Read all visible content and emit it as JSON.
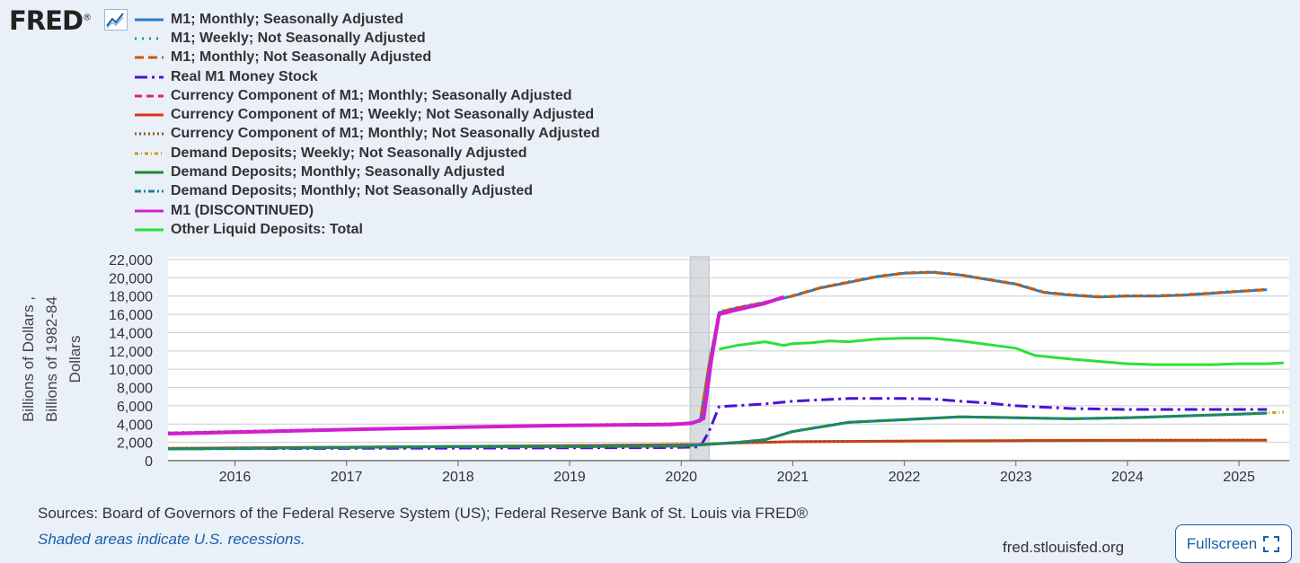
{
  "header": {
    "logo_text": "FRED",
    "logo_mark": "®",
    "logo_icon": "line-chart-icon"
  },
  "colors": {
    "background": "#e9f0f8",
    "recession": "#d9dde2",
    "grid": "#c8ccd2",
    "link": "#1a5fa8"
  },
  "chart_data": {
    "type": "line",
    "ylabel": "Billions of Dollars , Billions of 1982-84 Dollars",
    "ylabel_lines": [
      "Billions of Dollars ,",
      "Billions of 1982-84",
      "Dollars"
    ],
    "ylim": [
      0,
      22000
    ],
    "yticks": [
      "22,000",
      "20,000",
      "18,000",
      "16,000",
      "14,000",
      "12,000",
      "10,000",
      "8,000",
      "6,000",
      "4,000",
      "2,000",
      "0"
    ],
    "xlim": [
      2015.4,
      2025.45
    ],
    "xticks": [
      "2016",
      "2017",
      "2018",
      "2019",
      "2020",
      "2021",
      "2022",
      "2023",
      "2024",
      "2025"
    ],
    "recession": [
      2020.08,
      2020.25
    ],
    "grid": true,
    "series": [
      {
        "name": "M1; Monthly; Seasonally Adjusted",
        "color": "#2b7ad1",
        "dash": "",
        "width": 3,
        "x": [
          2015.4,
          2016,
          2017,
          2018,
          2019,
          2020.0,
          2020.17,
          2020.25,
          2020.34,
          2020.5,
          2020.75,
          2021.0,
          2021.25,
          2021.5,
          2021.75,
          2022.0,
          2022.25,
          2022.5,
          2022.75,
          2023.0,
          2023.25,
          2023.5,
          2023.75,
          2024.0,
          2024.25,
          2024.5,
          2024.75,
          2025.0,
          2025.25
        ],
        "y": [
          3000,
          3150,
          3400,
          3650,
          3850,
          4000,
          4300,
          10500,
          16200,
          16700,
          17300,
          18000,
          18900,
          19500,
          20100,
          20500,
          20600,
          20300,
          19800,
          19300,
          18400,
          18100,
          17900,
          18000,
          18000,
          18100,
          18300,
          18500,
          18700
        ]
      },
      {
        "name": "M1; Weekly; Not Seasonally Adjusted",
        "color": "#12938b",
        "dash": "2 6",
        "width": 3,
        "x": [
          2015.4,
          2016,
          2017,
          2018,
          2019,
          2020.0,
          2020.17,
          2020.25,
          2020.34,
          2020.5,
          2020.75,
          2021.0,
          2021.25,
          2021.5,
          2021.75,
          2022.0,
          2022.25,
          2022.5,
          2022.75,
          2023.0,
          2023.25,
          2023.5,
          2023.75,
          2024.0,
          2024.25,
          2024.5,
          2024.75,
          2025.0,
          2025.25
        ],
        "y": [
          3050,
          3200,
          3450,
          3700,
          3900,
          4050,
          4350,
          10600,
          16300,
          16750,
          17350,
          18050,
          18950,
          19550,
          20150,
          20550,
          20650,
          20350,
          19850,
          19350,
          18450,
          18150,
          17950,
          18050,
          18050,
          18150,
          18350,
          18550,
          18750
        ]
      },
      {
        "name": "M1; Monthly; Not Seasonally Adjusted",
        "color": "#c05c12",
        "dash": "10 5",
        "width": 3,
        "x": [
          2015.4,
          2016,
          2017,
          2018,
          2019,
          2020.0,
          2020.17,
          2020.25,
          2020.34,
          2020.5,
          2020.75,
          2021.0,
          2021.25,
          2021.5,
          2021.75,
          2022.0,
          2022.25,
          2022.5,
          2022.75,
          2023.0,
          2023.25,
          2023.5,
          2023.75,
          2024.0,
          2024.25,
          2024.5,
          2024.75,
          2025.0,
          2025.25
        ],
        "y": [
          3020,
          3170,
          3420,
          3670,
          3870,
          4020,
          4320,
          10550,
          16250,
          16720,
          17320,
          18020,
          18920,
          19520,
          20120,
          20520,
          20620,
          20320,
          19820,
          19320,
          18420,
          18120,
          17920,
          18020,
          18020,
          18120,
          18320,
          18520,
          18720
        ]
      },
      {
        "name": "Real M1 Money Stock",
        "color": "#4c12d6",
        "dash": "14 5 3 5",
        "width": 3,
        "x": [
          2015.4,
          2019.9,
          2020.17,
          2020.25,
          2020.34,
          2020.75,
          2021.0,
          2021.5,
          2022.0,
          2022.25,
          2022.5,
          2022.75,
          2023.0,
          2023.5,
          2024.0,
          2024.5,
          2025.0,
          2025.25
        ],
        "y": [
          1300,
          1420,
          1500,
          3200,
          5900,
          6200,
          6500,
          6800,
          6800,
          6750,
          6500,
          6300,
          6000,
          5700,
          5600,
          5600,
          5600,
          5600
        ]
      },
      {
        "name": "Currency Component of M1; Monthly; Seasonally Adjusted",
        "color": "#e0207a",
        "dash": "8 5",
        "width": 2,
        "x": [
          2015.4,
          2017,
          2019,
          2020.17,
          2020.5,
          2021.0,
          2022.0,
          2023.0,
          2024.0,
          2025.25
        ],
        "y": [
          1350,
          1480,
          1650,
          1780,
          1950,
          2080,
          2150,
          2200,
          2230,
          2250
        ]
      },
      {
        "name": "Currency Component of M1; Weekly; Not Seasonally Adjusted",
        "color": "#e03518",
        "dash": "",
        "width": 3,
        "x": [
          2015.4,
          2017,
          2019,
          2020.17,
          2020.5,
          2021.0,
          2022.0,
          2023.0,
          2024.0,
          2025.25
        ],
        "y": [
          1340,
          1470,
          1640,
          1770,
          1940,
          2070,
          2140,
          2190,
          2220,
          2240
        ]
      },
      {
        "name": "Currency Component of M1; Monthly; Not Seasonally Adjusted",
        "color": "#8a5a10",
        "dash": "2 3",
        "width": 3,
        "x": [
          2015.4,
          2017,
          2019,
          2020.17,
          2020.5,
          2021.0,
          2022.0,
          2023.0,
          2024.0,
          2025.25
        ],
        "y": [
          1345,
          1475,
          1645,
          1775,
          1945,
          2075,
          2145,
          2195,
          2225,
          2245
        ]
      },
      {
        "name": "Demand Deposits; Weekly; Not Seasonally Adjusted",
        "color": "#c99a12",
        "dash": "4 3 1 3",
        "width": 3,
        "x": [
          2015.4,
          2016,
          2017,
          2018,
          2019,
          2020.0,
          2020.25,
          2020.5,
          2020.75,
          2021.0,
          2021.25,
          2021.5,
          2022.0,
          2022.5,
          2023.0,
          2023.5,
          2024.0,
          2024.5,
          2025.0,
          2025.4
        ],
        "y": [
          1300,
          1350,
          1450,
          1550,
          1550,
          1600,
          1800,
          2000,
          2300,
          3200,
          3700,
          4200,
          4500,
          4800,
          4700,
          4600,
          4700,
          4900,
          5100,
          5300
        ]
      },
      {
        "name": "Demand Deposits; Monthly; Seasonally Adjusted",
        "color": "#1f8a2a",
        "dash": "",
        "width": 3,
        "x": [
          2015.4,
          2016,
          2017,
          2018,
          2019,
          2020.0,
          2020.25,
          2020.5,
          2020.75,
          2021.0,
          2021.25,
          2021.5,
          2022.0,
          2022.5,
          2023.0,
          2023.5,
          2024.0,
          2024.5,
          2025.0,
          2025.25
        ],
        "y": [
          1280,
          1330,
          1430,
          1530,
          1530,
          1580,
          1780,
          1980,
          2280,
          3180,
          3680,
          4180,
          4480,
          4780,
          4680,
          4580,
          4680,
          4880,
          5080,
          5200
        ]
      },
      {
        "name": "Demand Deposits; Monthly; Not Seasonally Adjusted",
        "color": "#18868f",
        "dash": "7 3 2 3",
        "width": 3,
        "x": [
          2015.4,
          2016,
          2017,
          2018,
          2019,
          2020.0,
          2020.25,
          2020.5,
          2020.75,
          2021.0,
          2021.25,
          2021.5,
          2022.0,
          2022.5,
          2023.0,
          2023.5,
          2024.0,
          2024.5,
          2025.0,
          2025.25
        ],
        "y": [
          1290,
          1340,
          1440,
          1540,
          1540,
          1590,
          1790,
          1990,
          2290,
          3190,
          3690,
          4190,
          4490,
          4790,
          4690,
          4590,
          4690,
          4890,
          5090,
          5210
        ]
      },
      {
        "name": "M1 (DISCONTINUED)",
        "color": "#d21ed2",
        "dash": "",
        "width": 4,
        "x": [
          2015.4,
          2016,
          2017,
          2018,
          2019,
          2019.9,
          2020.1,
          2020.2,
          2020.27,
          2020.34,
          2020.5,
          2020.75,
          2020.92
        ],
        "y": [
          2950,
          3100,
          3400,
          3650,
          3850,
          3950,
          4100,
          4600,
          11000,
          16000,
          16500,
          17200,
          17900
        ]
      },
      {
        "name": "Other Liquid Deposits: Total",
        "color": "#2be03a",
        "dash": "",
        "width": 3,
        "x": [
          2020.34,
          2020.5,
          2020.75,
          2020.92,
          2021.0,
          2021.17,
          2021.33,
          2021.5,
          2021.75,
          2022.0,
          2022.25,
          2022.5,
          2022.75,
          2023.0,
          2023.17,
          2023.5,
          2024.0,
          2024.25,
          2024.5,
          2024.75,
          2025.0,
          2025.25,
          2025.4
        ],
        "y": [
          12200,
          12600,
          13000,
          12600,
          12800,
          12900,
          13100,
          13000,
          13300,
          13400,
          13400,
          13100,
          12700,
          12300,
          11500,
          11100,
          10600,
          10500,
          10500,
          10500,
          10600,
          10600,
          10700
        ]
      }
    ]
  },
  "footer": {
    "sources": "Sources: Board of Governors of the Federal Reserve System (US); Federal Reserve Bank of St. Louis via FRED®",
    "shaded_note": "Shaded areas indicate U.S. recessions.",
    "site": "fred.stlouisfed.org",
    "fullscreen_label": "Fullscreen",
    "fullscreen_icon": "fullscreen-icon"
  }
}
